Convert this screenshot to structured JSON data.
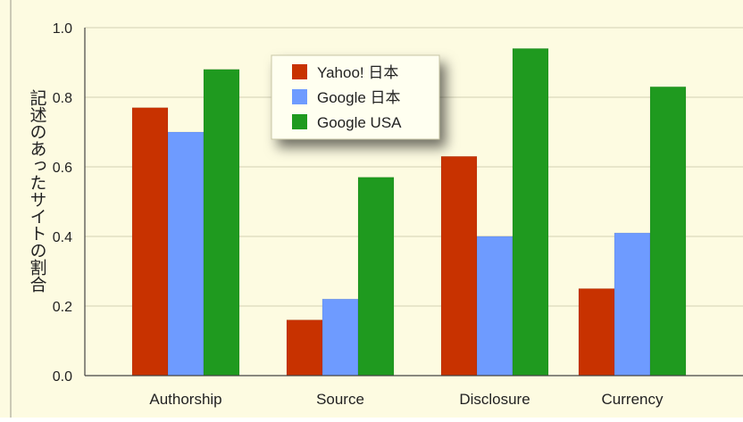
{
  "colors": {
    "background": "#fdfbe1",
    "grid": "#d2d0b4",
    "axis": "#444444",
    "frame": "#9a9a8a",
    "legend_bg": "#fffff0",
    "legend_border": "#c9c7a6"
  },
  "chart_data": {
    "type": "bar",
    "title": "",
    "xlabel": "",
    "ylabel": "記述のあったサイトの割合",
    "ylim": [
      0,
      1.0
    ],
    "yticks": [
      "0.0",
      "0.2",
      "0.4",
      "0.6",
      "0.8",
      "1.0"
    ],
    "grid": true,
    "legend_position": "top-center",
    "categories": [
      "Authorship",
      "Source",
      "Disclosure",
      "Currency"
    ],
    "series": [
      {
        "name": "Yahoo! 日本",
        "color": "#c83200",
        "values": [
          0.77,
          0.16,
          0.63,
          0.25
        ]
      },
      {
        "name": "Google 日本",
        "color": "#6e9bff",
        "values": [
          0.7,
          0.22,
          0.4,
          0.41
        ]
      },
      {
        "name": "Google USA",
        "color": "#1f9a1f",
        "values": [
          0.88,
          0.57,
          0.94,
          0.83
        ]
      }
    ]
  }
}
